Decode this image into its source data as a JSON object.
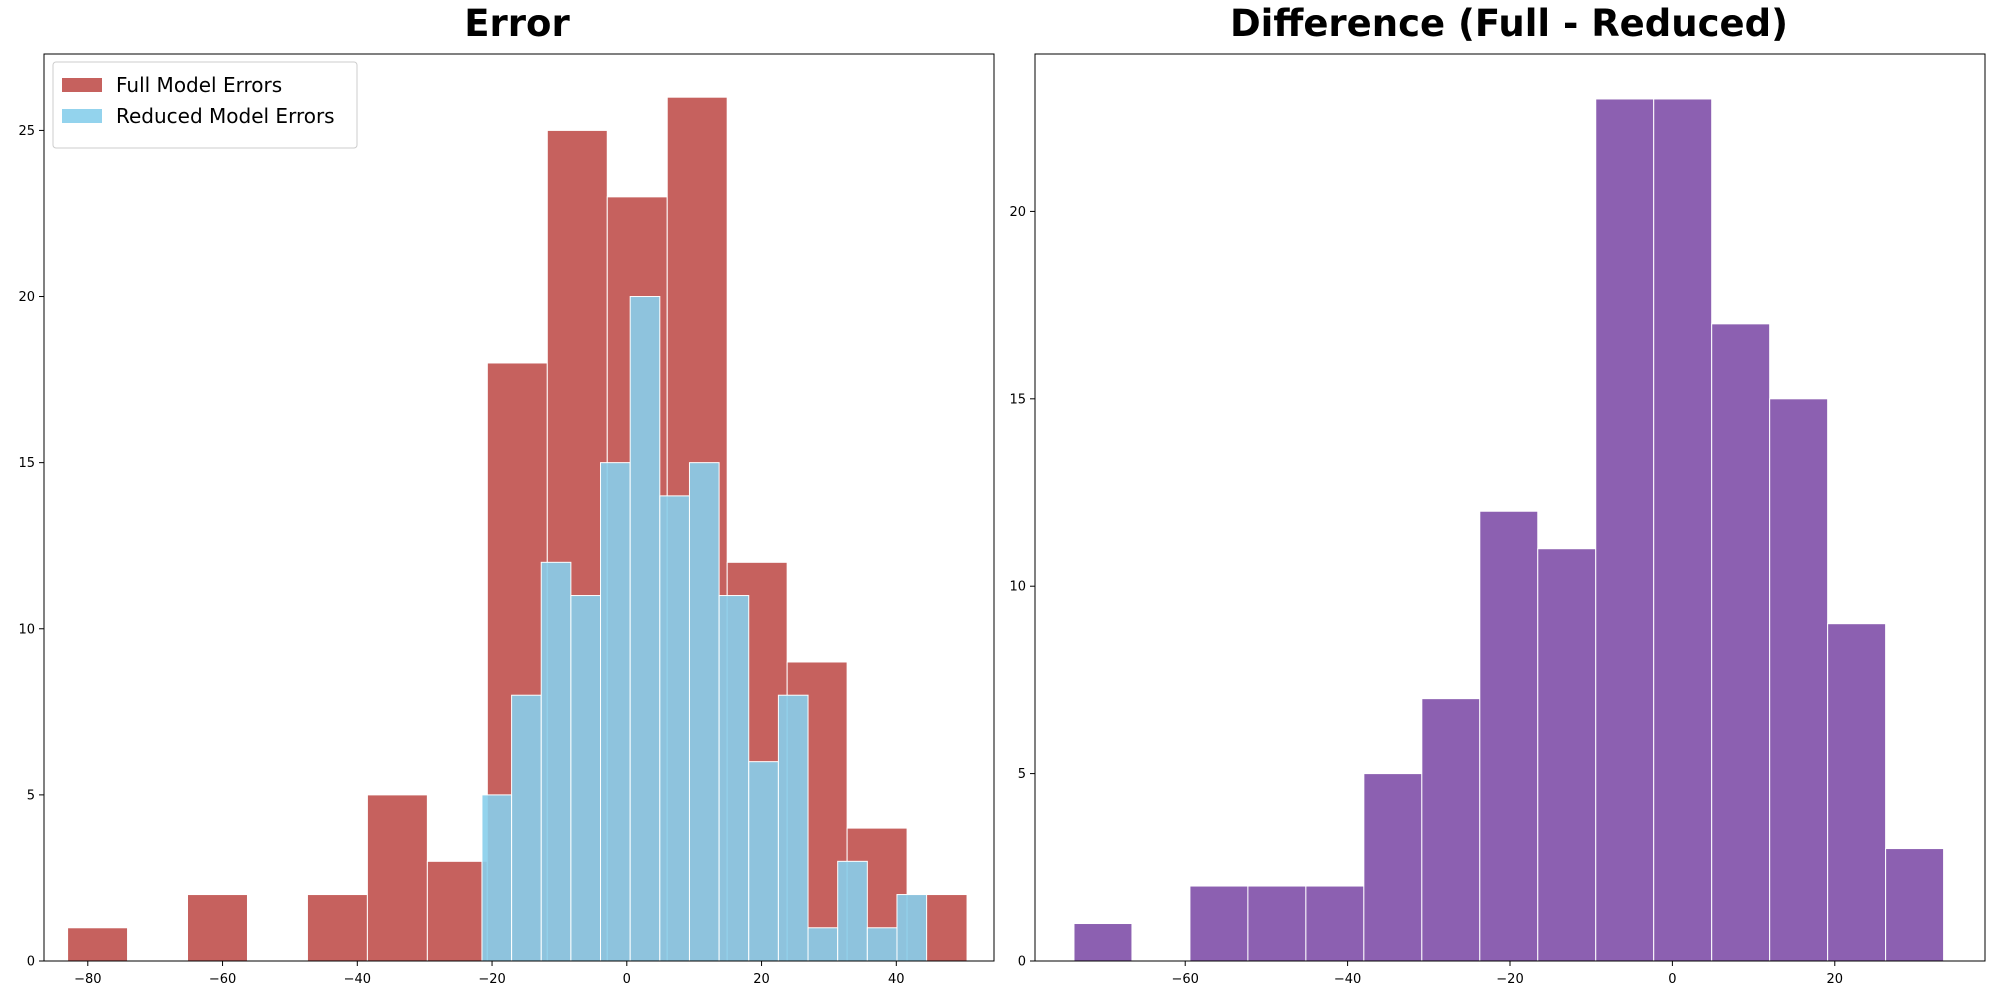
{
  "chart_data": [
    {
      "type": "bar",
      "title": "Error",
      "xlim": [
        -86.5,
        54.5
      ],
      "ylim": [
        0,
        27.3
      ],
      "xticks": [
        -80,
        -60,
        -40,
        -20,
        0,
        20,
        40
      ],
      "yticks": [
        0,
        5,
        10,
        15,
        20,
        25
      ],
      "legend_position": "top-left",
      "series": [
        {
          "name": "Full Model Errors",
          "color": "#c0504d",
          "bin_edges": [
            -83.0,
            -74.1,
            -65.2,
            -56.3,
            -47.4,
            -38.5,
            -29.6,
            -20.7,
            -11.8,
            -2.9,
            6.0,
            14.9,
            23.8,
            32.7,
            41.6,
            50.5
          ],
          "values": [
            1,
            0,
            2,
            0,
            2,
            5,
            3,
            18,
            25,
            23,
            26,
            12,
            9,
            4,
            2
          ]
        },
        {
          "name": "Reduced Model Errors",
          "color": "#87ceeb",
          "bin_edges": [
            -21.5,
            -17.1,
            -12.7,
            -8.3,
            -3.9,
            0.5,
            4.9,
            9.3,
            13.7,
            18.1,
            22.5,
            26.9,
            31.3,
            35.7,
            40.1,
            44.5
          ],
          "values": [
            5,
            8,
            12,
            11,
            15,
            20,
            14,
            15,
            11,
            6,
            8,
            1,
            3,
            1,
            2
          ]
        }
      ]
    },
    {
      "type": "bar",
      "title": "Difference (Full - Reduced)",
      "xlim": [
        -78.5,
        38.5
      ],
      "ylim": [
        0,
        24.2
      ],
      "xticks": [
        -60,
        -40,
        -20,
        0,
        20
      ],
      "yticks": [
        0,
        5,
        10,
        15,
        20
      ],
      "series": [
        {
          "color": "#7f4fa8",
          "bin_edges": [
            -73.7,
            -66.56,
            -59.42,
            -52.28,
            -45.14,
            -38.0,
            -30.86,
            -23.72,
            -16.58,
            -9.44,
            -2.3,
            4.84,
            11.98,
            19.12,
            26.26,
            33.4
          ],
          "values": [
            1,
            0,
            2,
            2,
            2,
            5,
            7,
            12,
            11,
            23,
            23,
            17,
            15,
            9,
            3
          ]
        }
      ]
    }
  ]
}
